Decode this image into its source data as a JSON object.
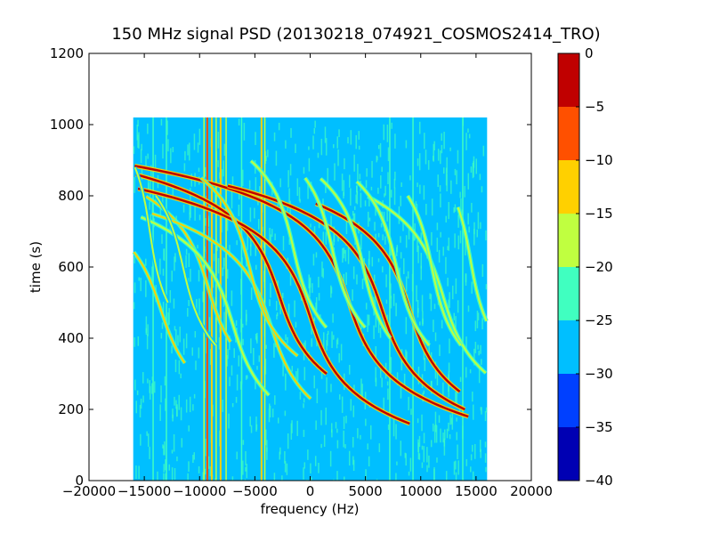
{
  "chart_data": {
    "type": "heatmap",
    "title": "150 MHz signal PSD (20130218_074921_COSMOS2414_TRO)",
    "xlabel": "frequency (Hz)",
    "ylabel": "time (s)",
    "xlim": [
      -20000,
      20000
    ],
    "ylim": [
      0,
      1200
    ],
    "x_ticks": [
      -20000,
      -15000,
      -10000,
      -5000,
      0,
      5000,
      10000,
      15000,
      20000
    ],
    "y_ticks": [
      0,
      200,
      400,
      600,
      800,
      1000,
      1200
    ],
    "x_tick_labels": [
      "−20000",
      "−15000",
      "−10000",
      "−5000",
      "0",
      "5000",
      "10000",
      "15000",
      "20000"
    ],
    "y_tick_labels": [
      "0",
      "200",
      "400",
      "600",
      "800",
      "1000",
      "1200"
    ],
    "data_extent": {
      "x": [
        -16000,
        16000
      ],
      "y": [
        0,
        1020
      ]
    },
    "background_level": -28,
    "vertical_lines": [
      {
        "x": -14200,
        "level": -22
      },
      {
        "x": -13000,
        "level": -22
      },
      {
        "x": -9600,
        "level": -17
      },
      {
        "x": -9300,
        "level": -10
      },
      {
        "x": -8900,
        "level": -12
      },
      {
        "x": -8500,
        "level": -17
      },
      {
        "x": -8100,
        "level": -13
      },
      {
        "x": -7600,
        "level": -17
      },
      {
        "x": -6200,
        "level": -22
      },
      {
        "x": -4400,
        "level": -12
      },
      {
        "x": -4100,
        "level": -20
      },
      {
        "x": 7200,
        "level": -22
      },
      {
        "x": 9300,
        "level": -22
      },
      {
        "x": 13800,
        "level": -22
      }
    ],
    "tracks": [
      {
        "center": [
          -13500,
          480
        ],
        "amp": 2600,
        "span": [
          -150,
          190
        ],
        "level": -14
      },
      {
        "center": [
          -9200,
          540
        ],
        "amp": 2400,
        "span": [
          -150,
          260
        ],
        "level": -15
      },
      {
        "center": [
          -7000,
          440
        ],
        "amp": 2400,
        "span": [
          -200,
          300
        ],
        "level": -16
      },
      {
        "center": [
          -3500,
          430
        ],
        "amp": 2600,
        "span": [
          -200,
          320
        ],
        "level": -15
      },
      {
        "center": [
          -2800,
          520
        ],
        "amp": 2600,
        "span": [
          -220,
          350
        ],
        "level": -5
      },
      {
        "center": [
          0,
          460
        ],
        "amp": 2600,
        "span": [
          -300,
          400
        ],
        "level": -3
      },
      {
        "center": [
          3500,
          500
        ],
        "amp": 2600,
        "span": [
          -320,
          400
        ],
        "level": -4
      },
      {
        "center": [
          6500,
          480
        ],
        "amp": 2600,
        "span": [
          -280,
          350
        ],
        "level": -5
      },
      {
        "center": [
          9000,
          480
        ],
        "amp": 2500,
        "span": [
          -230,
          300
        ],
        "level": -4
      },
      {
        "center": [
          12000,
          520
        ],
        "amp": 2400,
        "span": [
          -250,
          280
        ],
        "level": -16
      },
      {
        "center": [
          -14500,
          700
        ],
        "amp": 1200,
        "span": [
          -200,
          180
        ],
        "level": -18
      },
      {
        "center": [
          -11500,
          600
        ],
        "amp": 1800,
        "span": [
          -220,
          200
        ],
        "level": -18
      },
      {
        "center": [
          -5500,
          600
        ],
        "amp": 2000,
        "span": [
          -250,
          250
        ],
        "level": -14
      },
      {
        "center": [
          -1500,
          650
        ],
        "amp": 1800,
        "span": [
          -220,
          250
        ],
        "level": -16
      },
      {
        "center": [
          2000,
          650
        ],
        "amp": 1800,
        "span": [
          -220,
          200
        ],
        "level": -17
      },
      {
        "center": [
          4800,
          600
        ],
        "amp": 1800,
        "span": [
          -200,
          250
        ],
        "level": -16
      },
      {
        "center": [
          7800,
          600
        ],
        "amp": 1800,
        "span": [
          -220,
          240
        ],
        "level": -17
      },
      {
        "center": [
          11000,
          600
        ],
        "amp": 1600,
        "span": [
          -220,
          200
        ],
        "level": -16
      },
      {
        "center": [
          14500,
          620
        ],
        "amp": 1400,
        "span": [
          -200,
          150
        ],
        "level": -17
      }
    ],
    "colorbar": {
      "levels": [
        -40,
        -35,
        -30,
        -25,
        -20,
        -15,
        -10,
        -5,
        0
      ],
      "tick_labels": [
        "−40",
        "−35",
        "−30",
        "−25",
        "−20",
        "−15",
        "−10",
        "−5",
        "0"
      ],
      "colors": [
        "#0000b3",
        "#0040ff",
        "#00bfff",
        "#40ffc0",
        "#c0ff40",
        "#ffd000",
        "#ff5000",
        "#c00000"
      ]
    },
    "grid": false
  }
}
